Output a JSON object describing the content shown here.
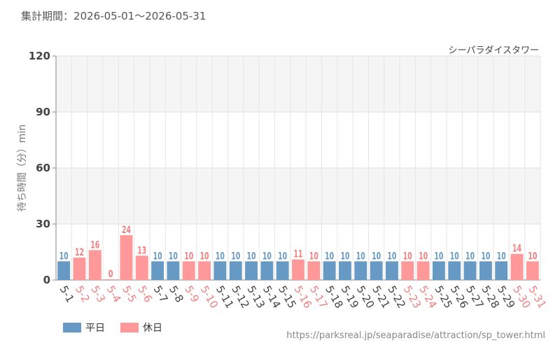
{
  "period": {
    "label": "集計期間",
    "separator": "：",
    "range": "2026-05-01〜2026-05-31"
  },
  "source_url": "https://parksreal.jp/seaparadise/attraction/sp_tower.html",
  "colors": {
    "weekday": "#6699c4",
    "holiday": "#ff9999",
    "holiday_text": "#f07f7f"
  },
  "chart_data": {
    "type": "bar",
    "title": "シーパラダイスタワー",
    "ylabel": "待ち時間（分）min",
    "xlabel": "",
    "ylim": [
      0,
      120
    ],
    "yticks": [
      0,
      30,
      60,
      90,
      120
    ],
    "grid": true,
    "legend_position": "bottom-left",
    "legend": [
      {
        "key": "weekday",
        "label": "平日"
      },
      {
        "key": "holiday",
        "label": "休日"
      }
    ],
    "categories": [
      "5-1",
      "5-2",
      "5-3",
      "5-4",
      "5-5",
      "5-6",
      "5-7",
      "5-8",
      "5-9",
      "5-10",
      "5-11",
      "5-12",
      "5-13",
      "5-14",
      "5-15",
      "5-16",
      "5-17",
      "5-18",
      "5-19",
      "5-20",
      "5-21",
      "5-22",
      "5-23",
      "5-24",
      "5-25",
      "5-26",
      "5-27",
      "5-28",
      "5-29",
      "5-30",
      "5-31"
    ],
    "values": [
      10,
      12,
      16,
      0,
      24,
      13,
      10,
      10,
      10,
      10,
      10,
      10,
      10,
      10,
      10,
      11,
      10,
      10,
      10,
      10,
      10,
      10,
      10,
      10,
      10,
      10,
      10,
      10,
      10,
      14,
      10
    ],
    "day_type": [
      "weekday",
      "holiday",
      "holiday",
      "holiday",
      "holiday",
      "holiday",
      "weekday",
      "weekday",
      "holiday",
      "holiday",
      "weekday",
      "weekday",
      "weekday",
      "weekday",
      "weekday",
      "holiday",
      "holiday",
      "weekday",
      "weekday",
      "weekday",
      "weekday",
      "weekday",
      "holiday",
      "holiday",
      "weekday",
      "weekday",
      "weekday",
      "weekday",
      "weekday",
      "holiday",
      "holiday"
    ]
  }
}
